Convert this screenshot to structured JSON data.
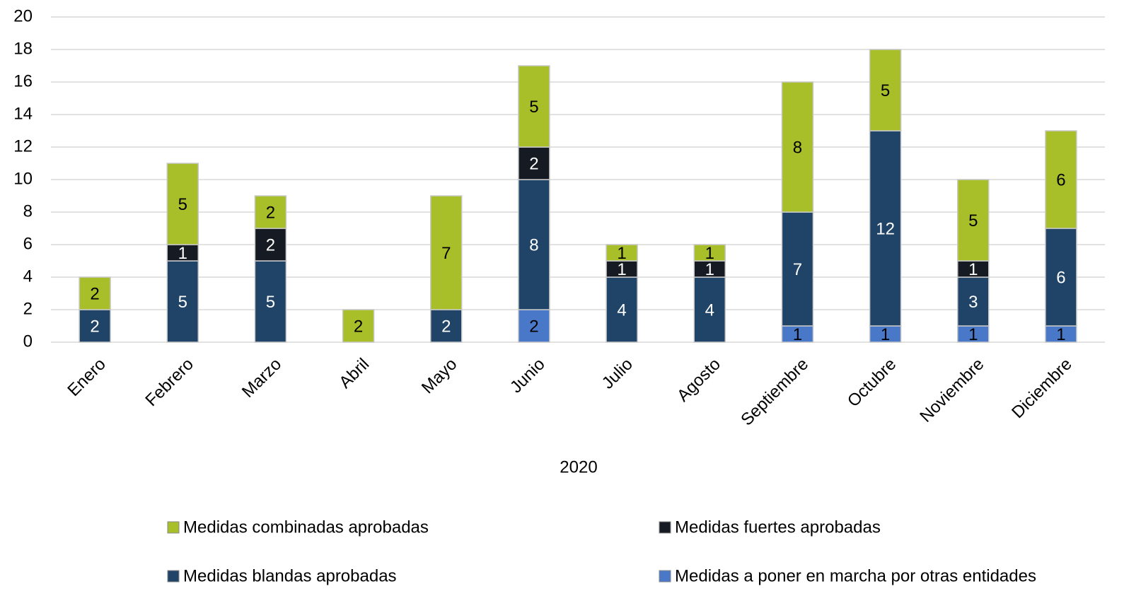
{
  "chart_data": {
    "type": "stacked_bar",
    "x_label": "2020",
    "categories": [
      "Enero",
      "Febrero",
      "Marzo",
      "Abril",
      "Mayo",
      "Junio",
      "Julio",
      "Agosto",
      "Septiembre",
      "Octubre",
      "Noviembre",
      "Diciembre"
    ],
    "series": [
      {
        "name": "Medidas a poner en marcha por otras entidades",
        "color": "#4a78c8",
        "values": [
          null,
          null,
          null,
          null,
          null,
          2,
          null,
          null,
          1,
          1,
          1,
          1
        ]
      },
      {
        "name": "Medidas blandas aprobadas",
        "color": "#1f4468",
        "values": [
          2,
          5,
          5,
          null,
          2,
          8,
          4,
          4,
          7,
          12,
          3,
          6
        ]
      },
      {
        "name": "Medidas fuertes aprobadas",
        "color": "#161a22",
        "values": [
          null,
          1,
          2,
          null,
          null,
          2,
          1,
          1,
          null,
          null,
          1,
          null
        ]
      },
      {
        "name": "Medidas combinadas aprobadas",
        "color": "#a8bf2a",
        "values": [
          2,
          5,
          2,
          2,
          7,
          5,
          1,
          1,
          8,
          5,
          5,
          6
        ]
      }
    ],
    "ylim": [
      0,
      20
    ],
    "yticks": [
      0,
      2,
      4,
      6,
      8,
      10,
      12,
      14,
      16,
      18,
      20
    ],
    "grid": true
  }
}
